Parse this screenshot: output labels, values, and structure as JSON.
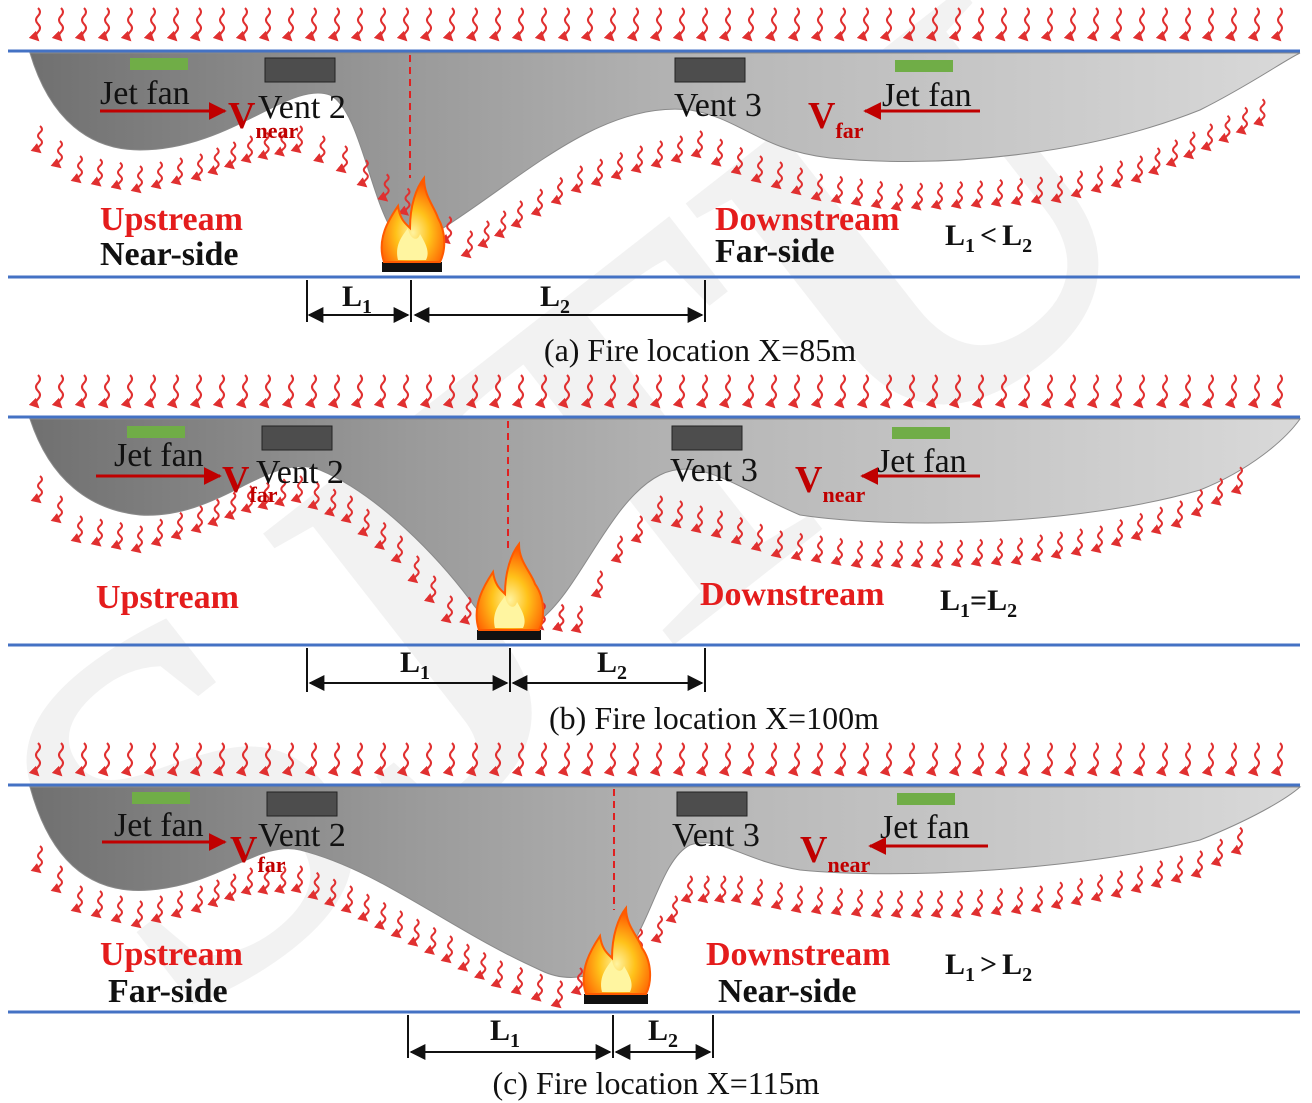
{
  "watermark": "SJTU",
  "panels": [
    {
      "id": "a",
      "caption": "(a) Fire location X=85m",
      "jet_fan_left": "Jet fan",
      "jet_fan_right": "Jet fan",
      "vent_left": "Vent 2",
      "vent_right": "Vent 3",
      "left_velocity": {
        "symbol": "V",
        "sub": "near"
      },
      "right_velocity": {
        "symbol": "V",
        "sub": "far"
      },
      "upstream": "Upstream",
      "upstream_side": "Near-side",
      "downstream": "Downstream",
      "downstream_side": "Far-side",
      "comparison": {
        "l1": "L",
        "l1_sub": "1",
        "op": "<",
        "l2": "L",
        "l2_sub": "2"
      },
      "dim_l1": {
        "symbol": "L",
        "sub": "1"
      },
      "dim_l2": {
        "symbol": "L",
        "sub": "2"
      }
    },
    {
      "id": "b",
      "caption": "(b) Fire location X=100m",
      "jet_fan_left": "Jet fan",
      "jet_fan_right": "Jet fan",
      "vent_left": "Vent 2",
      "vent_right": "Vent 3",
      "left_velocity": {
        "symbol": "V",
        "sub": "far"
      },
      "right_velocity": {
        "symbol": "V",
        "sub": "near"
      },
      "upstream": "Upstream",
      "upstream_side": "",
      "downstream": "Downstream",
      "downstream_side": "",
      "comparison": {
        "l1": "L",
        "l1_sub": "1",
        "op": "=",
        "l2": "L",
        "l2_sub": "2"
      },
      "dim_l1": {
        "symbol": "L",
        "sub": "1"
      },
      "dim_l2": {
        "symbol": "L",
        "sub": "2"
      }
    },
    {
      "id": "c",
      "caption": "(c) Fire location X=115m",
      "jet_fan_left": "Jet fan",
      "jet_fan_right": "Jet fan",
      "vent_left": "Vent 2",
      "vent_right": "Vent 3",
      "left_velocity": {
        "symbol": "V",
        "sub": "far"
      },
      "right_velocity": {
        "symbol": "V",
        "sub": "near"
      },
      "upstream": "Upstream",
      "upstream_side": "Far-side",
      "downstream": "Downstream",
      "downstream_side": "Near-side",
      "comparison": {
        "l1": "L",
        "l1_sub": "1",
        "op": ">",
        "l2": "L",
        "l2_sub": "2"
      },
      "dim_l1": {
        "symbol": "L",
        "sub": "1"
      },
      "dim_l2": {
        "symbol": "L",
        "sub": "2"
      }
    }
  ],
  "colors": {
    "tunnel_wall": "#4472c4",
    "smoke_dark": "#7a7a7a",
    "smoke_light": "#d6d6d6",
    "jet_fan": "#70ad47",
    "vent": "#4d4d4d",
    "heat_arrow": "#e03030",
    "flow_arrow": "#c00000",
    "red_label": "#e41c1c",
    "fire_outer": "#ff6a00",
    "fire_inner": "#ffd43b",
    "fire_base": "#111111"
  },
  "icons": [
    "heat-wave-arrow-icon",
    "flow-arrow-icon",
    "fire-icon",
    "jet-fan-icon",
    "vent-icon"
  ]
}
